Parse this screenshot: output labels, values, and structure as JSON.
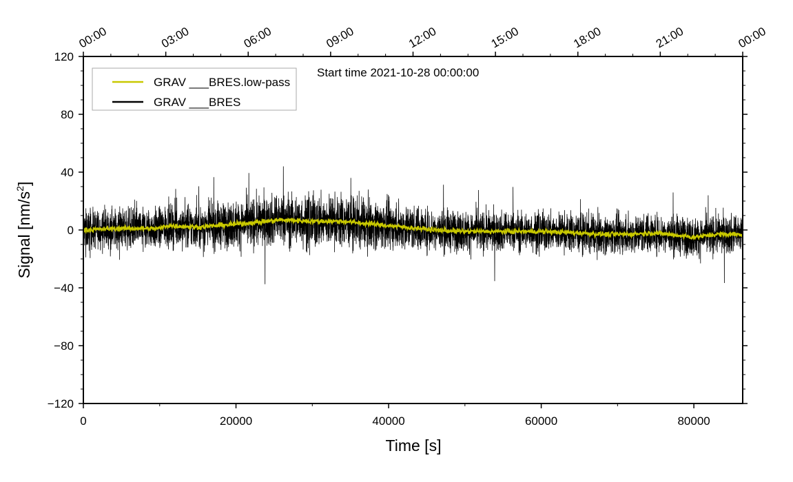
{
  "chart_data": {
    "type": "line",
    "title": "Start time 2021-10-28 00:00:00",
    "xlabel": "Time [s]",
    "ylabel": "Signal [nm/s",
    "ylabel_sup": "2",
    "ylabel_end": "]",
    "xlim": [
      0,
      86400
    ],
    "ylim": [
      -120,
      120
    ],
    "xticks": [
      0,
      20000,
      40000,
      60000,
      80000
    ],
    "xticks_labels": [
      "0",
      "20000",
      "40000",
      "60000",
      "80000"
    ],
    "yticks": [
      -120,
      -80,
      -40,
      0,
      40,
      80,
      120
    ],
    "yticks_labels": [
      "−120",
      "−80",
      "−40",
      "0",
      "40",
      "80",
      "120"
    ],
    "top_axis_labels": [
      "00:00",
      "03:00",
      "06:00",
      "09:00",
      "12:00",
      "15:00",
      "18:00",
      "21:00",
      "00:00"
    ],
    "grid": false,
    "legend_placement": "top-left",
    "series": [
      {
        "name": "GRAV ___BRES.low-pass",
        "color": "#c8c800",
        "x": [
          0,
          5000,
          10000,
          11000,
          15000,
          20000,
          24000,
          26000,
          30000,
          34000,
          38000,
          42000,
          46000,
          50000,
          55000,
          60000,
          65000,
          68000,
          71000,
          75000,
          80000,
          83000,
          86400
        ],
        "y": [
          0,
          1,
          1,
          3,
          2,
          4,
          6,
          7,
          6,
          6,
          4,
          2,
          0,
          -1,
          -1,
          -1,
          -2,
          -3,
          -3,
          -2,
          -5,
          -3,
          -3
        ]
      },
      {
        "name": "GRAV ___BRES",
        "color": "#000000",
        "description_envelope": "noise about low-pass, typical amplitude ±20 with spikes to ±40",
        "typical_amplitude": 20,
        "peak_values": [
          44,
          -37
        ]
      }
    ]
  }
}
